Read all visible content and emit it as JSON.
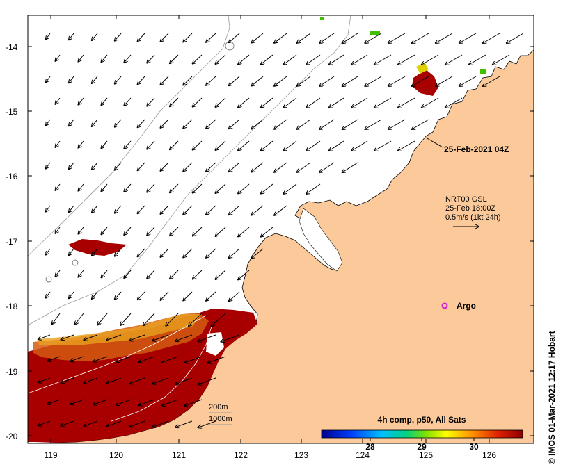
{
  "map": {
    "lon_ticks": [
      "119",
      "120",
      "121",
      "122",
      "123",
      "124",
      "125",
      "126"
    ],
    "lat_ticks": [
      "-14",
      "-15",
      "-16",
      "-17",
      "-18",
      "-19",
      "-20"
    ],
    "snapshot_time": "25-Feb-2021 04Z",
    "current_legend": {
      "product": "NRT00 GSL",
      "time": "25-Feb 18:00Z",
      "scale": "0.5m/s (1kt 24h)"
    },
    "argo_label": "Argo",
    "isobaths": [
      "200m",
      "1000m"
    ],
    "colorbar": {
      "title": "4h comp, p50, All Sats",
      "ticks": [
        "28",
        "29",
        "30"
      ]
    },
    "credit": "© IMOS 01-Mar-2021 12:17 Hobart",
    "colors": {
      "land": "#fbc99a",
      "sst_high": "#a80000",
      "argo": "#d020d0"
    }
  }
}
